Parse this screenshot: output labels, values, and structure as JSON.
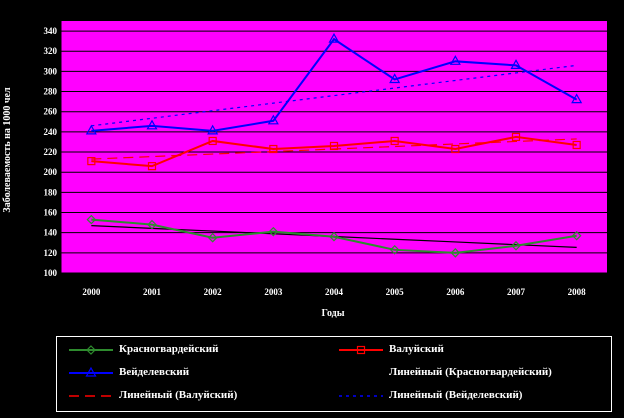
{
  "chart_data": {
    "type": "line",
    "title": "",
    "xlabel": "Годы",
    "ylabel": "Заболеваемость на 1000 чел",
    "ylim": [
      100,
      350
    ],
    "yticks": [
      100,
      120,
      140,
      160,
      180,
      200,
      220,
      240,
      260,
      280,
      300,
      320,
      340
    ],
    "x": [
      "2000",
      "2001",
      "2002",
      "2003",
      "2004",
      "2005",
      "2006",
      "2007",
      "2008"
    ],
    "grid": "horizontal",
    "legend_position": "bottom",
    "series": [
      {
        "name": "Красногвардейский",
        "color": "#2e8b2e",
        "marker": "diamond",
        "kind": "data",
        "values": [
          153,
          148,
          135,
          141,
          136,
          123,
          120,
          127,
          137
        ]
      },
      {
        "name": "Валуйский",
        "color": "#ff0000",
        "marker": "square",
        "kind": "data",
        "values": [
          211,
          206,
          231,
          223,
          226,
          231,
          223,
          235,
          227
        ]
      },
      {
        "name": "Вейделевский",
        "color": "#0000ff",
        "marker": "triangle",
        "kind": "data",
        "values": [
          241,
          246,
          241,
          251,
          332,
          292,
          310,
          306,
          272
        ]
      },
      {
        "name": "Линейный (Красногвардейский)",
        "color": "#000000",
        "dash": "solid",
        "kind": "trend",
        "values": [
          147,
          144.3,
          141.6,
          138.9,
          136.2,
          133.5,
          130.8,
          128.1,
          125.4
        ]
      },
      {
        "name": "Линейный (Валуйский)",
        "color": "#ff0000",
        "dash": "long",
        "kind": "trend",
        "values": [
          213,
          215.5,
          218,
          220.5,
          223,
          225.5,
          228,
          230.5,
          233
        ]
      },
      {
        "name": "Линейный (Вейделевский)",
        "color": "#0000ff",
        "dash": "dotted",
        "kind": "trend",
        "values": [
          246,
          253.5,
          261,
          268.5,
          276,
          283.5,
          291,
          298.5,
          306
        ]
      }
    ]
  }
}
